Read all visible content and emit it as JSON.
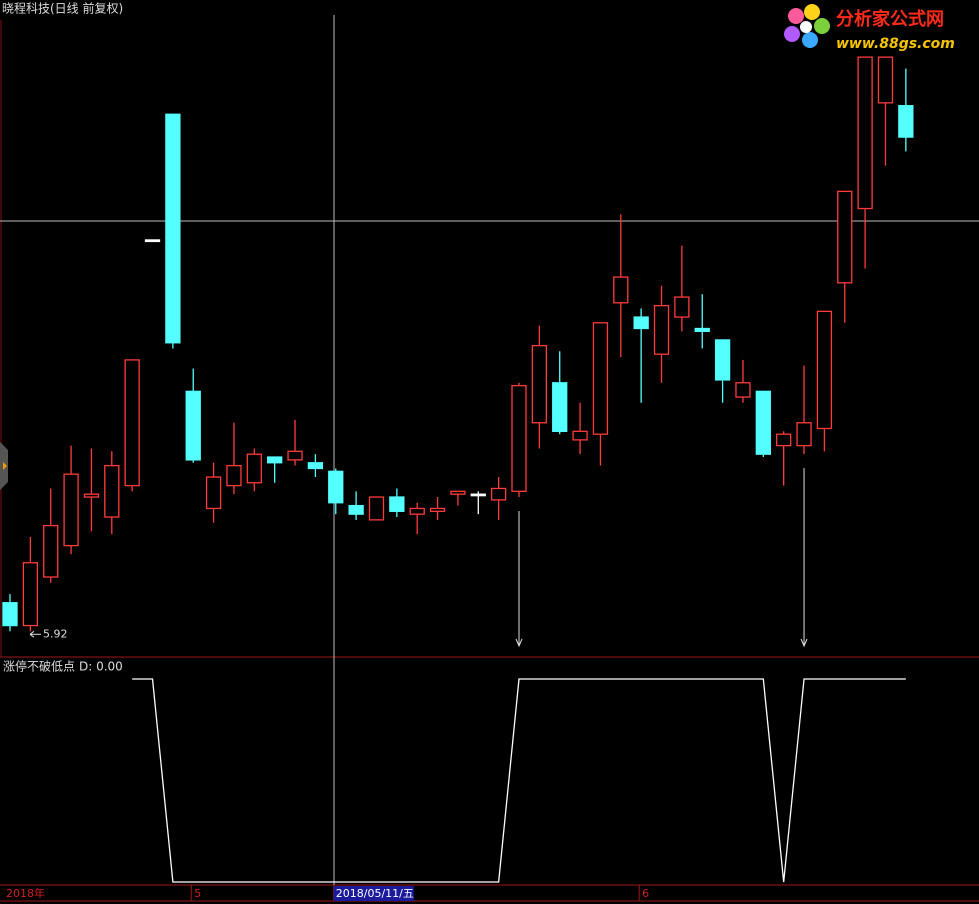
{
  "logo": {
    "name": "分析家公式网",
    "url": "www.88gs.com"
  },
  "chart_data": {
    "type": "candlestick",
    "title": "晓程科技(日线 前复权)",
    "categories": [
      "2018年",
      null,
      null,
      null,
      null,
      null,
      null,
      null,
      null,
      "5",
      null,
      null,
      null,
      null,
      null,
      null,
      "2018/05/11/五",
      null,
      null,
      null,
      null,
      null,
      null,
      null,
      null,
      null,
      null,
      null,
      null,
      null,
      null,
      "6",
      null,
      null,
      null,
      null,
      null,
      null,
      null,
      null,
      null,
      null,
      null,
      null,
      null
    ],
    "open": [
      6.02,
      5.94,
      6.11,
      6.22,
      6.39,
      6.32,
      6.43,
      7.29,
      7.73,
      6.76,
      6.35,
      6.43,
      6.44,
      6.53,
      6.52,
      6.51,
      6.48,
      6.36,
      6.31,
      6.39,
      6.33,
      6.34,
      6.4,
      6.4,
      6.38,
      6.41,
      6.65,
      6.79,
      6.59,
      6.61,
      7.07,
      7.02,
      6.89,
      7.02,
      6.98,
      6.94,
      6.74,
      6.76,
      6.57,
      6.57,
      6.63,
      7.14,
      7.4,
      7.77,
      7.76
    ],
    "close": [
      5.94,
      6.16,
      6.29,
      6.47,
      6.4,
      6.5,
      6.87,
      7.29,
      6.93,
      6.52,
      6.46,
      6.5,
      6.54,
      6.51,
      6.55,
      6.49,
      6.37,
      6.33,
      6.39,
      6.34,
      6.35,
      6.35,
      6.41,
      6.4,
      6.42,
      6.78,
      6.92,
      6.62,
      6.62,
      7.0,
      7.16,
      6.98,
      7.06,
      7.09,
      6.97,
      6.8,
      6.79,
      6.54,
      6.61,
      6.65,
      7.04,
      7.46,
      7.93,
      7.93,
      7.65
    ],
    "high": [
      6.05,
      6.25,
      6.42,
      6.57,
      6.56,
      6.55,
      6.87,
      7.29,
      7.73,
      6.84,
      6.51,
      6.65,
      6.56,
      6.53,
      6.66,
      6.54,
      6.49,
      6.41,
      6.39,
      6.42,
      6.37,
      6.39,
      6.41,
      6.41,
      6.46,
      6.79,
      6.99,
      6.9,
      6.72,
      7.0,
      7.38,
      7.05,
      7.13,
      7.27,
      7.1,
      6.94,
      6.87,
      6.76,
      6.62,
      6.85,
      7.04,
      7.46,
      7.93,
      7.93,
      7.89
    ],
    "low": [
      5.92,
      5.92,
      6.09,
      6.19,
      6.27,
      6.26,
      6.41,
      7.29,
      6.91,
      6.51,
      6.3,
      6.4,
      6.41,
      6.44,
      6.5,
      6.46,
      6.33,
      6.31,
      6.31,
      6.32,
      6.26,
      6.31,
      6.36,
      6.33,
      6.31,
      6.39,
      6.56,
      6.61,
      6.54,
      6.5,
      6.88,
      6.72,
      6.79,
      6.97,
      6.91,
      6.72,
      6.72,
      6.53,
      6.43,
      6.54,
      6.55,
      7.0,
      7.19,
      7.55,
      7.6
    ],
    "up_color": "#ff3b3b",
    "down_color": "#54ffff",
    "flat_color": "#ffffff",
    "ylim": [
      5.83,
      8.13
    ],
    "indicator": {
      "type": "line",
      "title": "涨停不破低点",
      "readout": "D: 0.00",
      "color": "#ffffff",
      "values": [
        null,
        null,
        null,
        null,
        null,
        null,
        1,
        1,
        0,
        0,
        0,
        0,
        0,
        0,
        0,
        0,
        0,
        0,
        0,
        0,
        0,
        0,
        0,
        0,
        0,
        1,
        1,
        1,
        1,
        1,
        1,
        1,
        1,
        1,
        1,
        1,
        1,
        1,
        0,
        1,
        1,
        1,
        1,
        1,
        1
      ],
      "ylim": [
        0,
        1
      ]
    }
  }
}
